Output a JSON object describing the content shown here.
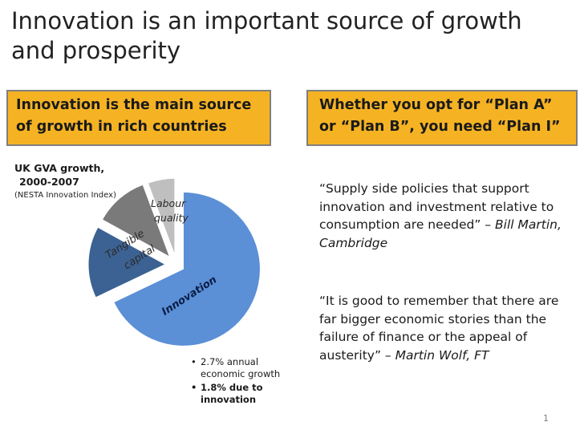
{
  "slide": {
    "title_line1": "Innovation is an important source of growth",
    "title_line2": "and prosperity",
    "page_number": "1"
  },
  "left_box": {
    "line1": "Innovation is the main source",
    "line2": "of growth in rich countries"
  },
  "right_box": {
    "line1": "Whether you opt for “Plan A”",
    "line2": "or “Plan B”, you need “Plan I”"
  },
  "chart_header": {
    "line1": "UK GVA growth,",
    "line2": "2000-2007",
    "line3": "(NESTA Innovation Index)"
  },
  "chart_data": {
    "type": "pie",
    "slices": [
      {
        "label": "Innovation",
        "value": 1.8,
        "color": "#5b8fd6"
      },
      {
        "label": "",
        "value": 0.4,
        "color": "#3c6293"
      },
      {
        "label": "Tangible capital",
        "value": 0.3,
        "color": "#7a7a7a"
      },
      {
        "label": "Labour quality",
        "value": 0.15,
        "color": "#bfbfbf"
      }
    ],
    "labels": {
      "innovation": "Innovation",
      "tangible_1": "Tangible",
      "tangible_2": "capital",
      "labour_1": "Labour",
      "labour_2": "quality"
    }
  },
  "bullets": {
    "b1_line1": "2.7% annual",
    "b1_line2": "economic growth",
    "b2_line1": "1.8% due to",
    "b2_line2": "innovation"
  },
  "quotes": {
    "q1_text": "“Supply side policies that support innovation and investment relative to consumption are needed” – ",
    "q1_author": "Bill Martin, Cambridge",
    "q2_text": "“It is good to remember that there are far bigger economic stories than the failure of finance or the appeal of austerity” – ",
    "q2_author": "Martin Wolf, FT"
  }
}
